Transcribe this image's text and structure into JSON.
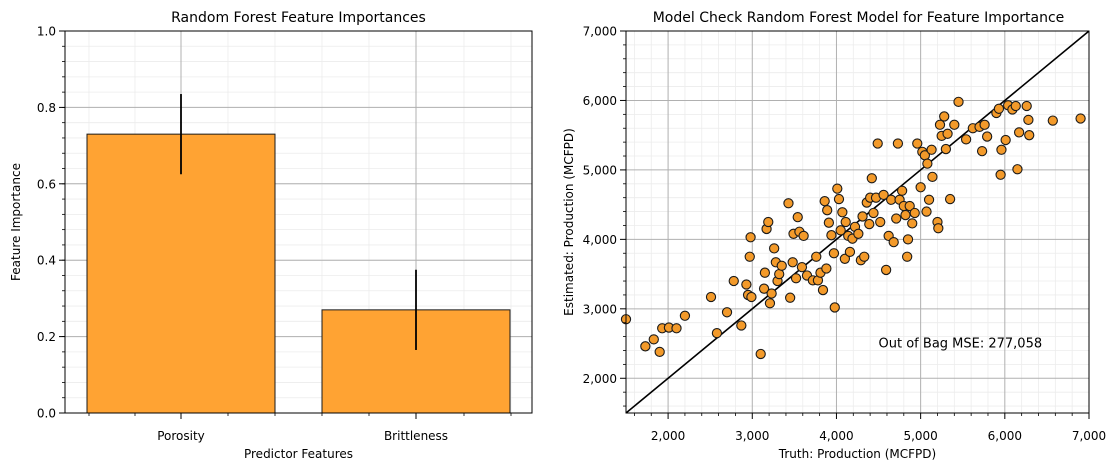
{
  "chart_data": [
    {
      "type": "bar",
      "title": "Random Forest Feature Importances",
      "xlabel": "Predictor Features",
      "ylabel": "Feature Importance",
      "categories": [
        "Porosity",
        "Brittleness"
      ],
      "values": [
        0.73,
        0.27
      ],
      "errors": [
        0.105,
        0.105
      ],
      "ylim": [
        0,
        1.0
      ],
      "yticks": [
        0.0,
        0.2,
        0.4,
        0.6,
        0.8,
        1.0
      ],
      "ytick_labels": [
        "0.0",
        "0.2",
        "0.4",
        "0.6",
        "0.8",
        "1.0"
      ],
      "grid": true,
      "colors": {
        "bar_fill": "#ffa333",
        "bar_edge": "#1a1a1a",
        "errorbar": "#000000"
      }
    },
    {
      "type": "scatter",
      "title": "Model Check Random Forest Model for Feature Importance",
      "xlabel": "Truth: Production (MCFPD)",
      "ylabel": "Estimated: Production (MCFPD)",
      "xlim": [
        1500,
        7000
      ],
      "ylim": [
        1500,
        7000
      ],
      "xticks": [
        2000,
        3000,
        4000,
        5000,
        6000,
        7000
      ],
      "xtick_labels": [
        "2,000",
        "3,000",
        "4,000",
        "5,000",
        "6,000",
        "7,000"
      ],
      "yticks": [
        2000,
        3000,
        4000,
        5000,
        6000,
        7000
      ],
      "ytick_labels": [
        "2,000",
        "3,000",
        "4,000",
        "5,000",
        "6,000",
        "7,000"
      ],
      "annotation": "Out of Bag MSE: 277,058",
      "reference_line": [
        [
          1500,
          1500
        ],
        [
          7000,
          7000
        ]
      ],
      "grid": true,
      "colors": {
        "marker_fill": "#f39a2a",
        "marker_edge": "#1a1a1a",
        "reference_line": "#000000"
      },
      "points": [
        [
          1500,
          2850
        ],
        [
          1730,
          2460
        ],
        [
          1830,
          2560
        ],
        [
          1900,
          2380
        ],
        [
          1930,
          2720
        ],
        [
          2010,
          2730
        ],
        [
          2100,
          2720
        ],
        [
          2200,
          2900
        ],
        [
          2510,
          3170
        ],
        [
          2580,
          2650
        ],
        [
          2700,
          2950
        ],
        [
          2780,
          3400
        ],
        [
          2870,
          2760
        ],
        [
          2930,
          3350
        ],
        [
          2950,
          3200
        ],
        [
          2970,
          3750
        ],
        [
          2980,
          4030
        ],
        [
          2990,
          3170
        ],
        [
          3100,
          2350
        ],
        [
          3140,
          3290
        ],
        [
          3150,
          3520
        ],
        [
          3170,
          4150
        ],
        [
          3190,
          4250
        ],
        [
          3210,
          3080
        ],
        [
          3230,
          3220
        ],
        [
          3260,
          3870
        ],
        [
          3280,
          3670
        ],
        [
          3300,
          3400
        ],
        [
          3320,
          3500
        ],
        [
          3350,
          3620
        ],
        [
          3430,
          4520
        ],
        [
          3450,
          3160
        ],
        [
          3480,
          3670
        ],
        [
          3490,
          4080
        ],
        [
          3520,
          3440
        ],
        [
          3540,
          4320
        ],
        [
          3560,
          4110
        ],
        [
          3590,
          3600
        ],
        [
          3610,
          4050
        ],
        [
          3650,
          3480
        ],
        [
          3720,
          3410
        ],
        [
          3760,
          3750
        ],
        [
          3780,
          3410
        ],
        [
          3810,
          3520
        ],
        [
          3840,
          3270
        ],
        [
          3860,
          4550
        ],
        [
          3880,
          3580
        ],
        [
          3890,
          4420
        ],
        [
          3910,
          4240
        ],
        [
          3940,
          4060
        ],
        [
          3970,
          3800
        ],
        [
          3980,
          3020
        ],
        [
          4010,
          4730
        ],
        [
          4030,
          4580
        ],
        [
          4050,
          4130
        ],
        [
          4070,
          4390
        ],
        [
          4100,
          3720
        ],
        [
          4110,
          4250
        ],
        [
          4140,
          4050
        ],
        [
          4160,
          3820
        ],
        [
          4190,
          4010
        ],
        [
          4220,
          4180
        ],
        [
          4260,
          4080
        ],
        [
          4290,
          3700
        ],
        [
          4310,
          4330
        ],
        [
          4330,
          3750
        ],
        [
          4360,
          4530
        ],
        [
          4390,
          4220
        ],
        [
          4400,
          4600
        ],
        [
          4420,
          4880
        ],
        [
          4440,
          4380
        ],
        [
          4470,
          4600
        ],
        [
          4490,
          5380
        ],
        [
          4520,
          4250
        ],
        [
          4560,
          4640
        ],
        [
          4590,
          3560
        ],
        [
          4620,
          4050
        ],
        [
          4650,
          4570
        ],
        [
          4680,
          3960
        ],
        [
          4710,
          4300
        ],
        [
          4730,
          5380
        ],
        [
          4750,
          4570
        ],
        [
          4780,
          4700
        ],
        [
          4800,
          4480
        ],
        [
          4820,
          4350
        ],
        [
          4840,
          3750
        ],
        [
          4850,
          4000
        ],
        [
          4870,
          4480
        ],
        [
          4900,
          4230
        ],
        [
          4930,
          4380
        ],
        [
          4960,
          5380
        ],
        [
          5000,
          4750
        ],
        [
          5020,
          5260
        ],
        [
          5050,
          5210
        ],
        [
          5070,
          4400
        ],
        [
          5080,
          5090
        ],
        [
          5100,
          4570
        ],
        [
          5130,
          5290
        ],
        [
          5140,
          4900
        ],
        [
          5200,
          4250
        ],
        [
          5210,
          4160
        ],
        [
          5230,
          5650
        ],
        [
          5250,
          5490
        ],
        [
          5280,
          5770
        ],
        [
          5300,
          5300
        ],
        [
          5320,
          5520
        ],
        [
          5350,
          4580
        ],
        [
          5400,
          5650
        ],
        [
          5450,
          5980
        ],
        [
          5540,
          5440
        ],
        [
          5620,
          5600
        ],
        [
          5700,
          5620
        ],
        [
          5730,
          5270
        ],
        [
          5760,
          5650
        ],
        [
          5790,
          5480
        ],
        [
          5900,
          5820
        ],
        [
          5930,
          5880
        ],
        [
          5950,
          4930
        ],
        [
          5960,
          5290
        ],
        [
          6010,
          5430
        ],
        [
          6040,
          5930
        ],
        [
          6090,
          5870
        ],
        [
          6130,
          5920
        ],
        [
          6150,
          5010
        ],
        [
          6170,
          5540
        ],
        [
          6260,
          5920
        ],
        [
          6280,
          5720
        ],
        [
          6290,
          5500
        ],
        [
          6570,
          5710
        ],
        [
          6900,
          5740
        ]
      ]
    }
  ]
}
